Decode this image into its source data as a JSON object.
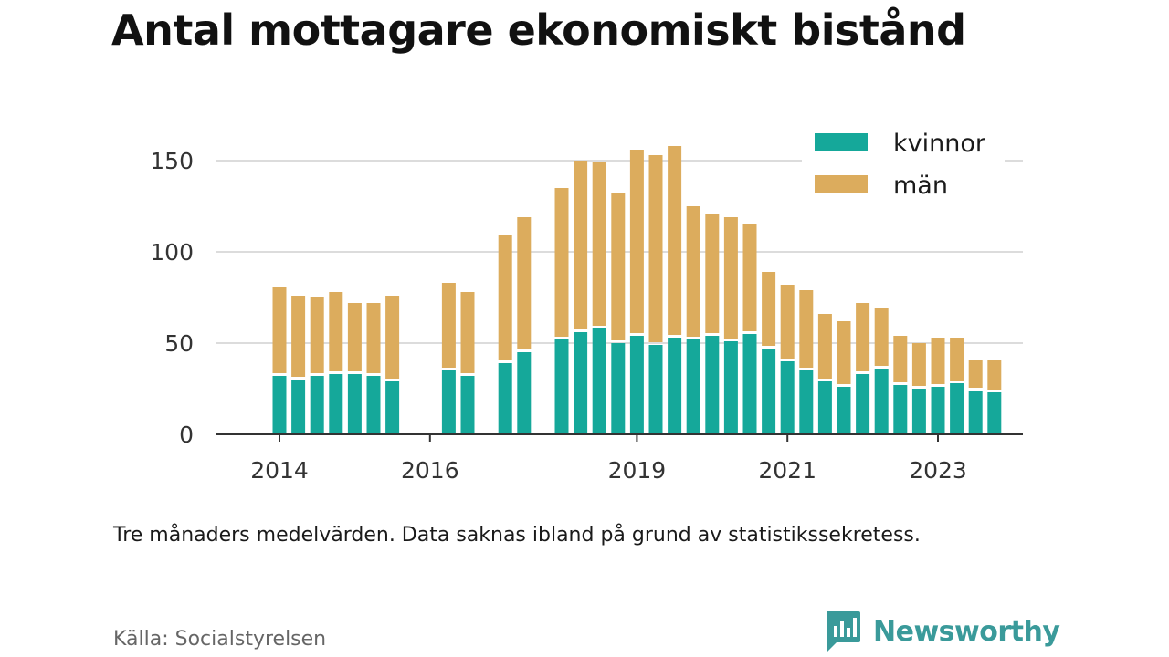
{
  "title": "Antal mottagare ekonomiskt bistånd",
  "note": "Tre månaders medelvärden. Data saknas ibland på grund av statistikssekretess.",
  "source": "Källa: Socialstyrelsen",
  "brand": {
    "name": "Newsworthy",
    "icon": "newsworthy-logo-icon",
    "color": "#3a9a9a"
  },
  "chart_data": {
    "type": "bar",
    "stacked": true,
    "x_unit": "quarter",
    "x": [
      "2014-Q2",
      "2014-Q3",
      "2014-Q4",
      "2015-Q1",
      "2015-Q2",
      "2015-Q3",
      "2015-Q4",
      "2016-Q1",
      "2016-Q2",
      "2016-Q3",
      "2016-Q4",
      "2017-Q1",
      "2017-Q2",
      "2017-Q3",
      "2017-Q4",
      "2018-Q1",
      "2018-Q2",
      "2018-Q3",
      "2018-Q4",
      "2019-Q1",
      "2019-Q2",
      "2019-Q3",
      "2019-Q4",
      "2020-Q1",
      "2020-Q2",
      "2020-Q3",
      "2020-Q4",
      "2021-Q1",
      "2021-Q2",
      "2021-Q3",
      "2021-Q4",
      "2022-Q1",
      "2022-Q2",
      "2022-Q3",
      "2022-Q4",
      "2023-Q1",
      "2023-Q2",
      "2023-Q3",
      "2023-Q4"
    ],
    "series": [
      {
        "name": "kvinnor",
        "color": "#15a89a",
        "values": [
          32,
          30,
          32,
          33,
          33,
          32,
          29,
          null,
          null,
          35,
          32,
          null,
          39,
          45,
          null,
          52,
          56,
          58,
          50,
          54,
          49,
          53,
          52,
          54,
          51,
          55,
          47,
          40,
          35,
          29,
          26,
          33,
          36,
          27,
          25,
          26,
          28,
          24,
          23
        ]
      },
      {
        "name": "män",
        "color": "#dcac5d",
        "values": [
          49,
          46,
          43,
          45,
          39,
          40,
          47,
          null,
          null,
          48,
          46,
          null,
          70,
          74,
          null,
          83,
          94,
          91,
          82,
          102,
          104,
          105,
          73,
          67,
          68,
          60,
          42,
          42,
          44,
          37,
          36,
          39,
          33,
          27,
          25,
          27,
          25,
          17,
          18
        ]
      }
    ],
    "y_ticks": [
      0,
      50,
      100,
      150
    ],
    "x_tick_labels": [
      {
        "label": "2014",
        "x": "2014-Q2"
      },
      {
        "label": "2016",
        "x": "2016-Q2"
      },
      {
        "label": "2019",
        "x": "2019-Q1"
      },
      {
        "label": "2021",
        "x": "2021-Q1"
      },
      {
        "label": "2023",
        "x": "2023-Q1"
      }
    ],
    "ylim": [
      0,
      160
    ],
    "grid": true,
    "legend_position": "top-right"
  }
}
